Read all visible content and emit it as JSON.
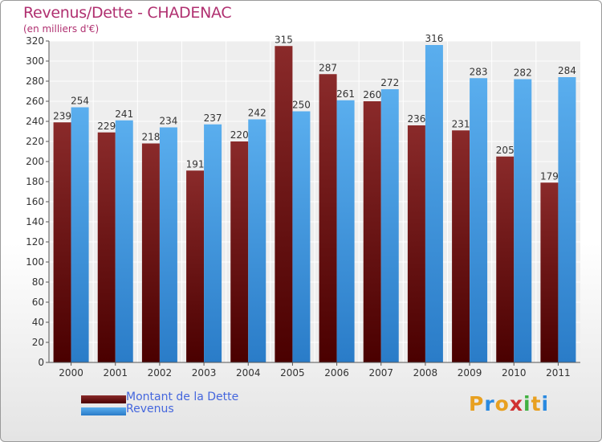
{
  "chart_data": {
    "type": "bar",
    "title": "Revenus/Dette - CHADENAC",
    "subtitle": "(en milliers d'€)",
    "categories": [
      "2000",
      "2001",
      "2002",
      "2003",
      "2004",
      "2005",
      "2006",
      "2007",
      "2008",
      "2009",
      "2010",
      "2011"
    ],
    "series": [
      {
        "name": "Montant de la Dette",
        "color": "#7a1a1a",
        "values": [
          239,
          229,
          218,
          191,
          220,
          315,
          287,
          260,
          236,
          231,
          205,
          179
        ]
      },
      {
        "name": "Revenus",
        "color": "#4aa0e6",
        "values": [
          254,
          241,
          234,
          237,
          242,
          250,
          261,
          272,
          316,
          283,
          282,
          284
        ]
      }
    ],
    "ylim": [
      0,
      320
    ],
    "yticks": [
      0,
      20,
      40,
      60,
      80,
      100,
      120,
      140,
      160,
      180,
      200,
      220,
      240,
      260,
      280,
      300,
      320
    ],
    "grid": true,
    "legend": "bottom-left"
  },
  "logo": {
    "letters": [
      "P",
      "r",
      "o",
      "x",
      "i",
      "t",
      "i"
    ],
    "colors": [
      "#e8a020",
      "#2a8ae0",
      "#e8a020",
      "#d03030",
      "#40b040",
      "#e8a020",
      "#2a8ae0"
    ]
  }
}
